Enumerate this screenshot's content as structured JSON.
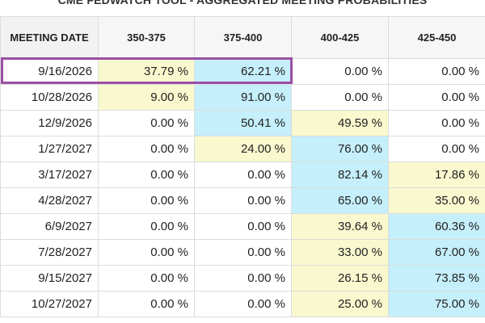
{
  "title": "CME FEDWATCH TOOL - AGGREGATED MEETING PROBABILITIES",
  "columns": [
    "MEETING DATE",
    "350-375",
    "375-400",
    "400-425",
    "425-450"
  ],
  "rows": [
    {
      "date": "9/16/2026",
      "values": [
        "37.79 %",
        "62.21 %",
        "0.00 %",
        "0.00 %"
      ]
    },
    {
      "date": "10/28/2026",
      "values": [
        "9.00 %",
        "91.00 %",
        "0.00 %",
        "0.00 %"
      ]
    },
    {
      "date": "12/9/2026",
      "values": [
        "0.00 %",
        "50.41 %",
        "49.59 %",
        "0.00 %"
      ]
    },
    {
      "date": "1/27/2027",
      "values": [
        "0.00 %",
        "24.00 %",
        "76.00 %",
        "0.00 %"
      ]
    },
    {
      "date": "3/17/2027",
      "values": [
        "0.00 %",
        "0.00 %",
        "82.14 %",
        "17.86 %"
      ]
    },
    {
      "date": "4/28/2027",
      "values": [
        "0.00 %",
        "0.00 %",
        "65.00 %",
        "35.00 %"
      ]
    },
    {
      "date": "6/9/2027",
      "values": [
        "0.00 %",
        "0.00 %",
        "39.64 %",
        "60.36 %"
      ]
    },
    {
      "date": "7/28/2027",
      "values": [
        "0.00 %",
        "0.00 %",
        "33.00 %",
        "67.00 %"
      ]
    },
    {
      "date": "9/15/2027",
      "values": [
        "0.00 %",
        "0.00 %",
        "26.15 %",
        "73.85 %"
      ]
    },
    {
      "date": "10/27/2027",
      "values": [
        "0.00 %",
        "0.00 %",
        "25.00 %",
        "75.00 %"
      ]
    }
  ],
  "colors": {
    "highest_probability": "#c5effa",
    "second_probability": "#f9f8cf",
    "highlight_box": "#9b4fa3",
    "border": "#dcdcdc",
    "header_bg": "#f6f6f6"
  }
}
